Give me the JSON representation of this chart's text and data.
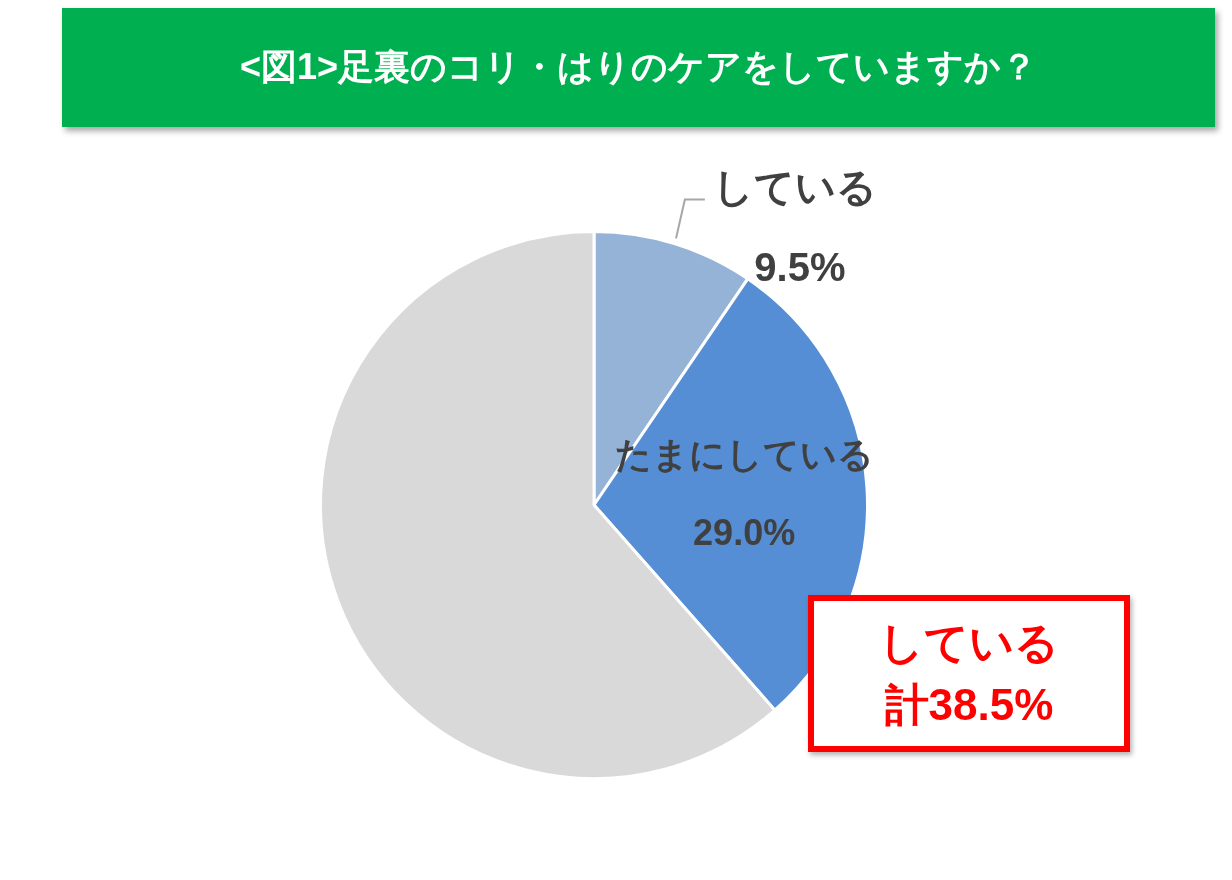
{
  "chart_data": {
    "type": "pie",
    "title": "<図1>足裏のコリ・はりのケアをしていますか？",
    "categories": [
      "している",
      "たまにしている",
      null
    ],
    "values": [
      9.5,
      29.0,
      61.5
    ],
    "colors": [
      "#95b3d7",
      "#558ed5",
      "#d9d9d9"
    ],
    "value_labels": [
      "9.5%",
      "29.0%",
      null
    ],
    "annotations": [
      "している",
      "計38.5%"
    ]
  }
}
